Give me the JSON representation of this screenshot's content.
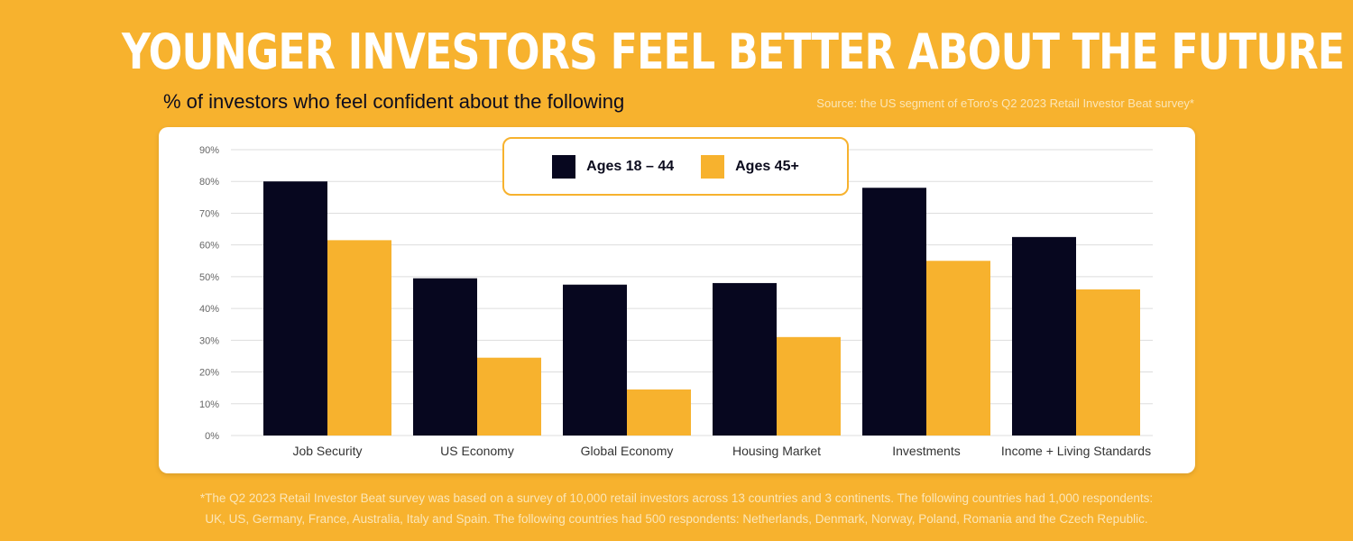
{
  "title": "YOUNGER INVESTORS FEEL BETTER ABOUT THE FUTURE",
  "subtitle": "% of investors who feel confident about the following",
  "source": "Source: the US segment of eToro's Q2 2023 Retail Investor Beat survey*",
  "footnote": {
    "line1": "*The Q2 2023 Retail Investor Beat survey was based on a survey of 10,000 retail investors across 13 countries and 3 continents. The following countries had 1,000 respondents:",
    "line2": "UK, US, Germany, France, Australia, Italy and Spain. The following countries had 500 respondents: Netherlands, Denmark, Norway, Poland, Romania and the Czech Republic."
  },
  "colors": {
    "background": "#f7b22e",
    "series_dark": "#07071f",
    "series_gold": "#f7b22e",
    "grid": "#dddddd"
  },
  "chart_data": {
    "type": "bar",
    "categories": [
      "Job Security",
      "US Economy",
      "Global Economy",
      "Housing Market",
      "Investments",
      "Income + Living Standards"
    ],
    "series": [
      {
        "name": "Ages 18 – 44",
        "color": "#07071f",
        "values": [
          80,
          49.5,
          47.5,
          48,
          78,
          62.5
        ]
      },
      {
        "name": "Ages 45+",
        "color": "#f7b22e",
        "values": [
          61.5,
          24.5,
          14.5,
          31,
          55,
          46
        ]
      }
    ],
    "yticks": [
      "0%",
      "10%",
      "20%",
      "30%",
      "40%",
      "50%",
      "60%",
      "70%",
      "80%",
      "90%"
    ],
    "ylim": [
      0,
      90
    ],
    "grid": true,
    "legend_position": "top-center"
  }
}
